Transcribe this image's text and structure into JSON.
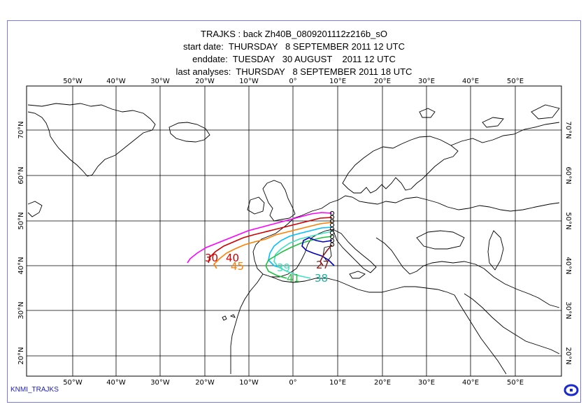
{
  "title": {
    "line1": "TRAJKS : back Zh40B_0809201112z216b_sO",
    "line2": "start date:  THURSDAY   8 SEPTEMBER 2011 12 UTC",
    "line3": "enddate:  TUESDAY   30 AUGUST    2011 12 UTC",
    "line4": "last analyses:  THURSDAY   8 SEPTEMBER 2011 18 UTC"
  },
  "lon_labels": [
    "50°W",
    "40°W",
    "30°W",
    "20°W",
    "10°W",
    "0°",
    "10°E",
    "20°E",
    "30°E",
    "40°E",
    "50°E"
  ],
  "lat_labels": [
    "70°N",
    "60°N",
    "50°N",
    "40°N",
    "30°N",
    "20°N"
  ],
  "trajectory_labels": [
    {
      "text": "30",
      "color": "#d00000"
    },
    {
      "text": "40",
      "color": "#d00000"
    },
    {
      "text": "45",
      "color": "#ff7f00"
    },
    {
      "text": "27",
      "color": "#8b1a1a"
    },
    {
      "text": "39",
      "color": "#40e0c0"
    },
    {
      "text": "41",
      "color": "#20c040"
    },
    {
      "text": "38",
      "color": "#20b0a0"
    }
  ],
  "series_colors": [
    "#ff00ff",
    "#d00000",
    "#ff7f00",
    "#00c0ff",
    "#40e0c0",
    "#20c040",
    "#0000c0",
    "#8b1a1a"
  ],
  "footer": "KNMI_TRAJKS",
  "logo_icon": "knmi-logo-icon"
}
